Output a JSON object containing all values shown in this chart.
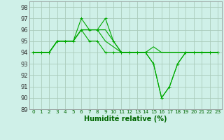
{
  "lines": [
    {
      "x": [
        0,
        1,
        2,
        3,
        4,
        5,
        6,
        7,
        8,
        9,
        10,
        11,
        12,
        13,
        14,
        15,
        16,
        17,
        18,
        19,
        20,
        21,
        22,
        23
      ],
      "y": [
        94,
        94,
        94,
        95,
        95,
        95,
        97,
        96,
        96,
        97,
        95,
        94,
        94,
        94,
        94,
        93,
        90,
        91,
        93,
        94,
        94,
        94,
        94,
        94
      ],
      "marker": true
    },
    {
      "x": [
        0,
        1,
        2,
        3,
        4,
        5,
        6,
        7,
        8,
        9,
        10,
        11,
        12,
        13,
        14,
        15,
        16,
        17,
        18,
        19,
        20,
        21,
        22,
        23
      ],
      "y": [
        94,
        94,
        94,
        95,
        95,
        95,
        96,
        96,
        96,
        96,
        95,
        94,
        94,
        94,
        94,
        94.5,
        94,
        94,
        94,
        94,
        94,
        94,
        94,
        94
      ],
      "marker": false
    },
    {
      "x": [
        0,
        1,
        2,
        3,
        4,
        5,
        6,
        7,
        8,
        9,
        10,
        11,
        12,
        13,
        14,
        15,
        16,
        17,
        18,
        19,
        20,
        21,
        22,
        23
      ],
      "y": [
        94,
        94,
        94,
        95,
        95,
        95,
        96,
        96,
        96,
        95,
        94.5,
        94,
        94,
        94,
        94,
        94,
        94,
        94,
        94,
        94,
        94,
        94,
        94,
        94
      ],
      "marker": false
    },
    {
      "x": [
        0,
        1,
        2,
        3,
        4,
        5,
        6,
        7,
        8,
        9,
        10,
        11,
        12,
        13,
        14,
        15,
        16,
        17,
        18,
        19,
        20,
        21,
        22,
        23
      ],
      "y": [
        94,
        94,
        94,
        95,
        95,
        95,
        96,
        95,
        95,
        94,
        94,
        94,
        94,
        94,
        94,
        93,
        90,
        91,
        93,
        94,
        94,
        94,
        94,
        94
      ],
      "marker": true
    }
  ],
  "xlabel": "Humidité relative (%)",
  "ylim": [
    89,
    98.5
  ],
  "xlim": [
    -0.5,
    23.5
  ],
  "yticks": [
    89,
    90,
    91,
    92,
    93,
    94,
    95,
    96,
    97,
    98
  ],
  "xticks": [
    0,
    1,
    2,
    3,
    4,
    5,
    6,
    7,
    8,
    9,
    10,
    11,
    12,
    13,
    14,
    15,
    16,
    17,
    18,
    19,
    20,
    21,
    22,
    23
  ],
  "bg_color": "#cff0e8",
  "grid_color": "#aaccbb",
  "line_color": "#00aa00",
  "xlabel_color": "#006600",
  "tick_color_x": "#006600",
  "tick_color_y": "#333333",
  "xlabel_fontsize": 7,
  "xtick_fontsize": 5.2,
  "ytick_fontsize": 6.0,
  "linewidth": 0.8,
  "markersize": 2.5
}
